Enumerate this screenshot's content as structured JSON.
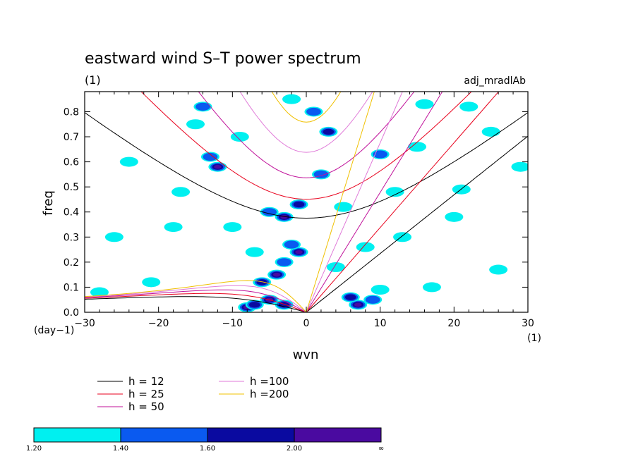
{
  "chart_data": {
    "type": "heatmap",
    "title": "eastward wind S–T power spectrum",
    "subtitle": "(1)",
    "corner_label": "adj_mradlAb",
    "xlabel": "wvn",
    "ylabel": "freq",
    "x_unit_label": "(1)",
    "y_unit_label": "(day−1)",
    "xlim": [
      -30,
      30
    ],
    "ylim": [
      0,
      0.88
    ],
    "x_ticks": [
      -30,
      -20,
      -10,
      0,
      10,
      20,
      30
    ],
    "x_tick_labels": [
      "−30",
      "−20",
      "−10",
      "0",
      "10",
      "20",
      "30"
    ],
    "y_ticks": [
      0.0,
      0.1,
      0.2,
      0.3,
      0.4,
      0.5,
      0.6,
      0.7,
      0.8
    ],
    "y_tick_labels": [
      "0.0",
      "0.1",
      "0.2",
      "0.3",
      "0.4",
      "0.5",
      "0.6",
      "0.7",
      "0.8"
    ],
    "grid": false,
    "dispersion_curves": [
      {
        "label": "h = 12",
        "h": 12,
        "color": "#000000"
      },
      {
        "label": "h = 25",
        "h": 25,
        "color": "#e8001c"
      },
      {
        "label": "h = 50",
        "h": 50,
        "color": "#c0119a"
      },
      {
        "label": "h =100",
        "h": 100,
        "color": "#e07ad8"
      },
      {
        "label": "h =200",
        "h": 200,
        "color": "#f0c000"
      }
    ],
    "colorbar": {
      "levels": [
        "1.20",
        "1.40",
        "1.60",
        "2.00",
        "∞"
      ],
      "colors": [
        "#00f0f0",
        "#0a5af0",
        "#0a0aa0",
        "#4a0aa0"
      ]
    },
    "blobs": [
      {
        "x": -8,
        "y": 0.02,
        "level": 3
      },
      {
        "x": -7,
        "y": 0.03,
        "level": 2
      },
      {
        "x": -5,
        "y": 0.05,
        "level": 3
      },
      {
        "x": -3,
        "y": 0.03,
        "level": 2
      },
      {
        "x": -6,
        "y": 0.12,
        "level": 2
      },
      {
        "x": -4,
        "y": 0.15,
        "level": 3
      },
      {
        "x": -3,
        "y": 0.2,
        "level": 1
      },
      {
        "x": -1,
        "y": 0.24,
        "level": 3
      },
      {
        "x": -2,
        "y": 0.27,
        "level": 1
      },
      {
        "x": -3,
        "y": 0.38,
        "level": 3
      },
      {
        "x": -5,
        "y": 0.4,
        "level": 1
      },
      {
        "x": -1,
        "y": 0.43,
        "level": 2
      },
      {
        "x": -12,
        "y": 0.58,
        "level": 3
      },
      {
        "x": -13,
        "y": 0.62,
        "level": 1
      },
      {
        "x": 2,
        "y": 0.55,
        "level": 1
      },
      {
        "x": 3,
        "y": 0.72,
        "level": 2
      },
      {
        "x": 1,
        "y": 0.8,
        "level": 1
      },
      {
        "x": 7,
        "y": 0.03,
        "level": 3
      },
      {
        "x": 6,
        "y": 0.06,
        "level": 2
      },
      {
        "x": 9,
        "y": 0.05,
        "level": 1
      },
      {
        "x": 10,
        "y": 0.09,
        "level": 0
      },
      {
        "x": -14,
        "y": 0.82,
        "level": 1
      },
      {
        "x": -15,
        "y": 0.75,
        "level": 0
      },
      {
        "x": -24,
        "y": 0.6,
        "level": 0
      },
      {
        "x": -26,
        "y": 0.3,
        "level": 0
      },
      {
        "x": -18,
        "y": 0.34,
        "level": 0
      },
      {
        "x": 15,
        "y": 0.66,
        "level": 0
      },
      {
        "x": 13,
        "y": 0.3,
        "level": 0
      },
      {
        "x": 21,
        "y": 0.49,
        "level": 0
      },
      {
        "x": 25,
        "y": 0.72,
        "level": 0
      },
      {
        "x": 26,
        "y": 0.17,
        "level": 0
      },
      {
        "x": 20,
        "y": 0.38,
        "level": 0
      },
      {
        "x": 17,
        "y": 0.1,
        "level": 0
      },
      {
        "x": -9,
        "y": 0.7,
        "level": 0
      },
      {
        "x": -10,
        "y": 0.34,
        "level": 0
      },
      {
        "x": 8,
        "y": 0.26,
        "level": 0
      },
      {
        "x": 10,
        "y": 0.63,
        "level": 1
      },
      {
        "x": 5,
        "y": 0.42,
        "level": 0
      },
      {
        "x": -21,
        "y": 0.12,
        "level": 0
      },
      {
        "x": -28,
        "y": 0.08,
        "level": 0
      },
      {
        "x": 29,
        "y": 0.58,
        "level": 0
      },
      {
        "x": 16,
        "y": 0.83,
        "level": 0
      },
      {
        "x": -7,
        "y": 0.24,
        "level": 0
      },
      {
        "x": 12,
        "y": 0.48,
        "level": 0
      },
      {
        "x": -2,
        "y": 0.85,
        "level": 0
      },
      {
        "x": 22,
        "y": 0.82,
        "level": 0
      },
      {
        "x": -17,
        "y": 0.48,
        "level": 0
      },
      {
        "x": 4,
        "y": 0.18,
        "level": 0
      }
    ]
  }
}
